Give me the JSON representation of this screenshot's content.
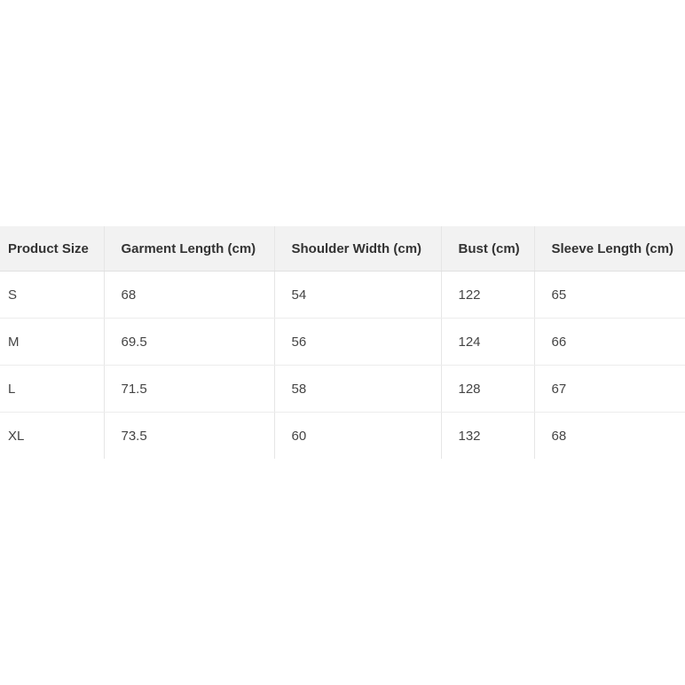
{
  "table": {
    "headers": [
      "Product Size",
      "Garment Length (cm)",
      "Shoulder Width (cm)",
      "Bust (cm)",
      "Sleeve Length (cm)"
    ],
    "rows": [
      [
        "S",
        "68",
        "54",
        "122",
        "65"
      ],
      [
        "M",
        "69.5",
        "56",
        "124",
        "66"
      ],
      [
        "L",
        "71.5",
        "58",
        "128",
        "67"
      ],
      [
        "XL",
        "73.5",
        "60",
        "132",
        "68"
      ]
    ]
  }
}
